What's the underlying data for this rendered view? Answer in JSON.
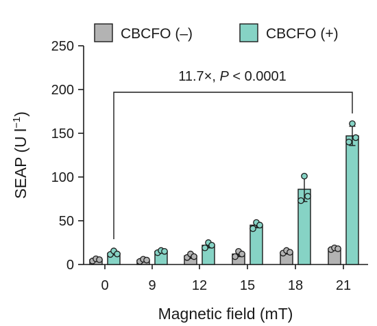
{
  "chart_data": {
    "type": "bar",
    "xlabel": "Magnetic field (mT)",
    "ylabel_main": "SEAP (U l",
    "ylabel_sup": "−1",
    "ylabel_close": ")",
    "ylim": [
      0,
      250
    ],
    "yticks": [
      "0",
      "50",
      "100",
      "150",
      "200",
      "250"
    ],
    "categories": [
      "0",
      "9",
      "12",
      "15",
      "18",
      "21"
    ],
    "legend_position": "top",
    "series": [
      {
        "name": "CBCFO (–)",
        "color": "#b3b3b3",
        "values": [
          5.5,
          5,
          10,
          12,
          14,
          18
        ],
        "errors": [
          1.5,
          2,
          3,
          3,
          2,
          2
        ],
        "points": [
          [
            4,
            6.5,
            5.5
          ],
          [
            3.5,
            6,
            5
          ],
          [
            8,
            12,
            9
          ],
          [
            9,
            15,
            12
          ],
          [
            13,
            16,
            14
          ],
          [
            17,
            19,
            18
          ]
        ]
      },
      {
        "name": "CBCFO (+)",
        "color": "#86d3c5",
        "values": [
          13,
          15,
          22,
          45,
          86,
          147
        ],
        "errors": [
          2,
          1.5,
          3,
          3,
          14,
          11
        ],
        "points": [
          [
            11.5,
            15.5,
            12
          ],
          [
            13.5,
            16,
            15
          ],
          [
            19,
            25,
            22
          ],
          [
            41,
            48,
            45
          ],
          [
            73,
            101,
            78
          ],
          [
            140,
            161,
            145
          ]
        ]
      }
    ],
    "annotation": {
      "fold": "11.7×, ",
      "p_symbol": "P",
      "p_rest": " < 0.0001",
      "from": 0,
      "to": 5
    }
  }
}
